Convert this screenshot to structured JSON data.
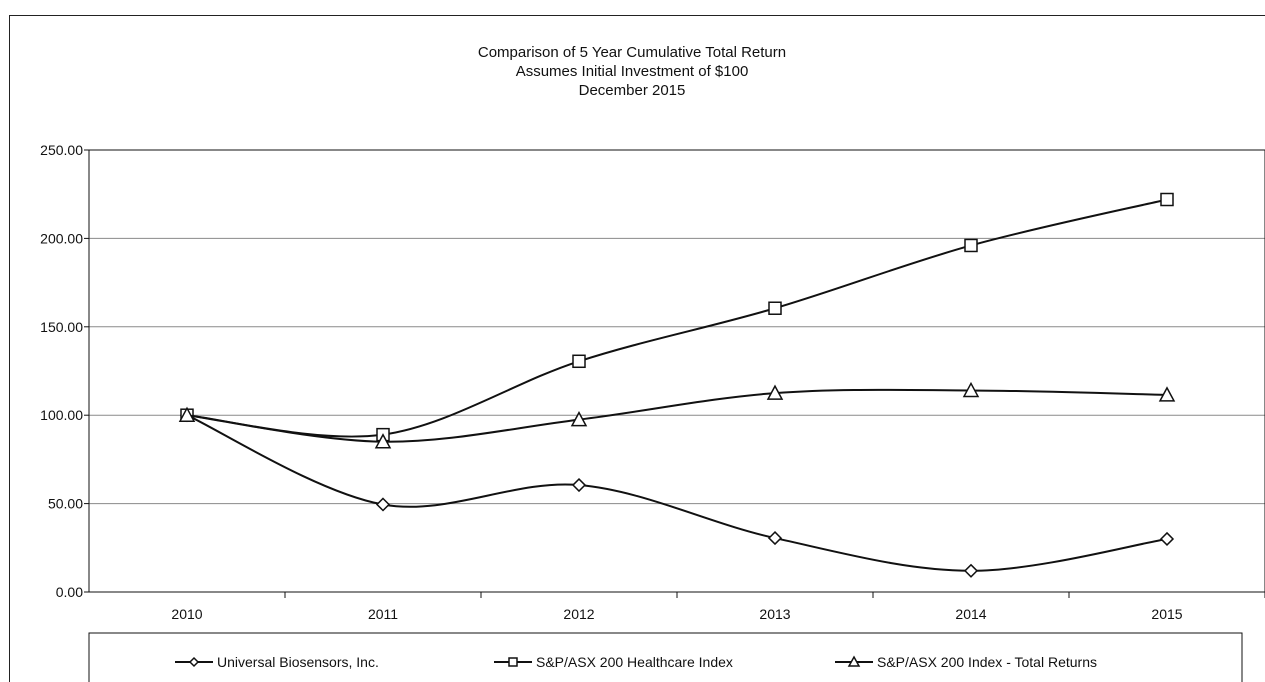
{
  "chart_data": {
    "type": "line",
    "title": [
      "Comparison of 5 Year Cumulative Total Return",
      "Assumes Initial Investment of $100",
      "December 2015"
    ],
    "categories": [
      "2010",
      "2011",
      "2012",
      "2013",
      "2014",
      "2015"
    ],
    "ylim": [
      0,
      250
    ],
    "yticks": [
      0,
      50,
      100,
      150,
      200,
      250
    ],
    "ytick_labels": [
      "0.00",
      "50.00",
      "100.00",
      "150.00",
      "200.00",
      "250.00"
    ],
    "grid": true,
    "legend_position": "bottom",
    "series": [
      {
        "name": "Universal Biosensors, Inc.",
        "marker": "diamond",
        "values": [
          100,
          49.5,
          60.5,
          30.5,
          12,
          30
        ]
      },
      {
        "name": "S&P/ASX 200 Healthcare Index",
        "marker": "square",
        "values": [
          100,
          89,
          130.5,
          160.5,
          196,
          222
        ]
      },
      {
        "name": "S&P/ASX  200 Index - Total Returns",
        "marker": "triangle",
        "values": [
          100,
          85,
          97.5,
          112.5,
          114,
          111.5
        ]
      }
    ],
    "line_color": "#111111",
    "grid_color": "#8a8a8a"
  }
}
